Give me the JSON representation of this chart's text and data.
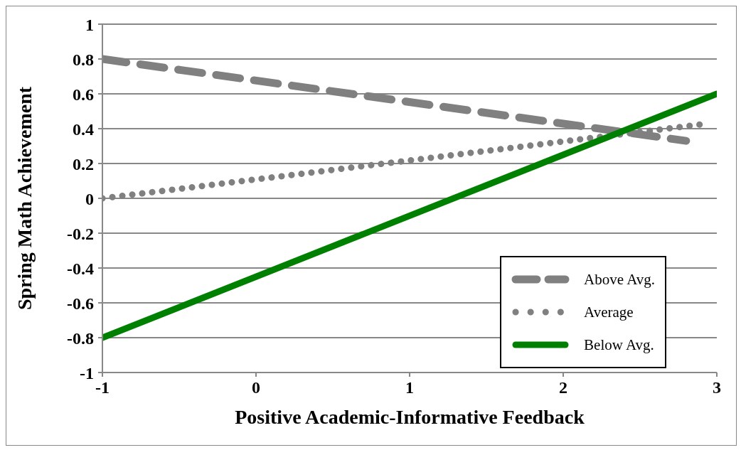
{
  "chart_data": {
    "type": "line",
    "xlabel": "Positive Academic-Informative Feedback",
    "ylabel": "Spring Math Achievement",
    "xlim": [
      -1,
      3
    ],
    "xticks": [
      -1,
      0,
      1,
      2,
      3
    ],
    "ylim": [
      -1,
      1
    ],
    "yticks": [
      -1,
      -0.8,
      -0.6,
      -0.4,
      -0.2,
      0,
      0.2,
      0.4,
      0.6,
      0.8,
      1
    ],
    "grid": "y",
    "legend": "bottom right",
    "marker": "none",
    "series": [
      {
        "name": "Above Avg.",
        "color": "#808080",
        "line_style": "dashed",
        "x": [
          -1,
          2.8
        ],
        "values": [
          0.8,
          0.33
        ]
      },
      {
        "name": "Average",
        "color": "#808080",
        "line_style": "dotted",
        "x": [
          -1,
          2.95
        ],
        "values": [
          0,
          0.43
        ]
      },
      {
        "name": "Below Avg.",
        "color": "#008000",
        "line_style": "solid",
        "x": [
          -1,
          3
        ],
        "values": [
          -0.8,
          0.6
        ]
      }
    ]
  }
}
